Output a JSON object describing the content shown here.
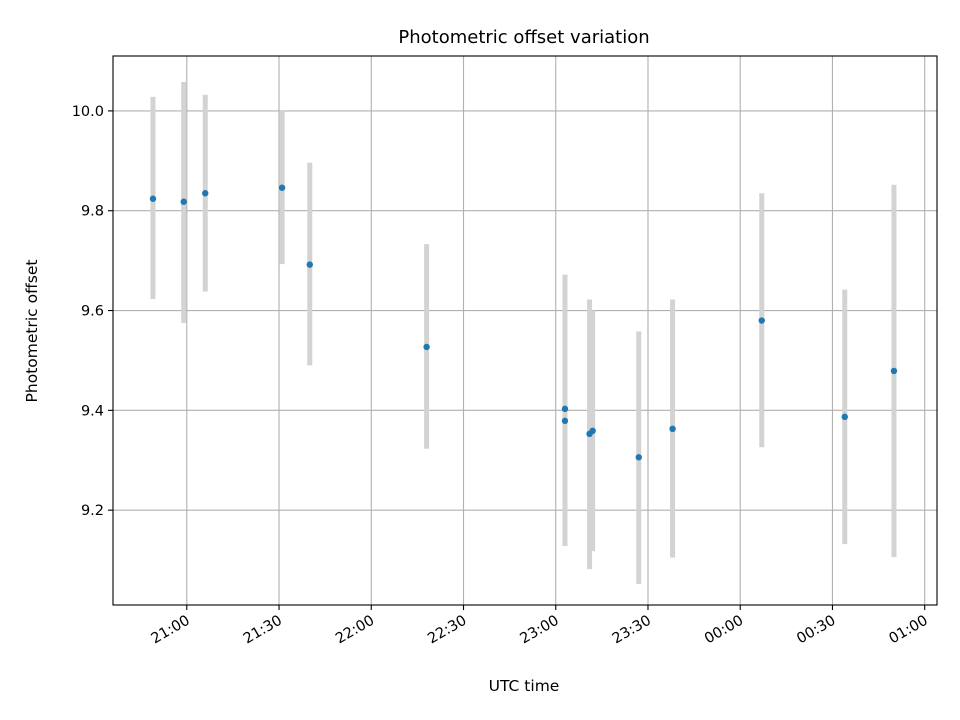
{
  "chart_data": {
    "type": "scatter",
    "title": "Photometric offset variation",
    "xlabel": "UTC time",
    "ylabel": "Photometric offset",
    "grid": true,
    "x_axis": {
      "kind": "time",
      "start": "20:36",
      "end": "01:04",
      "ticks": [
        "21:00",
        "21:30",
        "22:00",
        "22:30",
        "23:00",
        "23:30",
        "00:00",
        "00:30",
        "01:00"
      ]
    },
    "y_axis": {
      "range": [
        9.01,
        10.11
      ],
      "ticks": [
        9.2,
        9.4,
        9.6,
        9.8,
        10.0
      ],
      "tick_labels": [
        "9.2",
        "9.4",
        "9.6",
        "9.8",
        "10.0"
      ]
    },
    "colors": {
      "points": "#1f77b4",
      "errorbars": "#d3d3d3",
      "grid": "#b0b0b0"
    },
    "series": [
      {
        "points": [
          {
            "x": "20:49",
            "y": 9.824,
            "low": 9.623,
            "high": 10.028
          },
          {
            "x": "20:59",
            "y": 9.818,
            "low": 9.575,
            "high": 10.058
          },
          {
            "x": "21:06",
            "y": 9.835,
            "low": 9.638,
            "high": 10.032
          },
          {
            "x": "21:31",
            "y": 9.846,
            "low": 9.693,
            "high": 10.0
          },
          {
            "x": "21:40",
            "y": 9.692,
            "low": 9.49,
            "high": 9.896
          },
          {
            "x": "22:18",
            "y": 9.527,
            "low": 9.323,
            "high": 9.733
          },
          {
            "x": "23:03",
            "y": 9.403,
            "low": 9.135,
            "high": 9.672
          },
          {
            "x": "23:03",
            "y": 9.379,
            "low": 9.128,
            "high": 9.632
          },
          {
            "x": "23:11",
            "y": 9.353,
            "low": 9.082,
            "high": 9.622
          },
          {
            "x": "23:12",
            "y": 9.359,
            "low": 9.118,
            "high": 9.6
          },
          {
            "x": "23:27",
            "y": 9.306,
            "low": 9.052,
            "high": 9.558
          },
          {
            "x": "23:38",
            "y": 9.363,
            "low": 9.105,
            "high": 9.622
          },
          {
            "x": "00:07",
            "y": 9.58,
            "low": 9.326,
            "high": 9.835
          },
          {
            "x": "00:34",
            "y": 9.387,
            "low": 9.132,
            "high": 9.642
          },
          {
            "x": "00:50",
            "y": 9.479,
            "low": 9.106,
            "high": 9.852
          }
        ]
      }
    ]
  }
}
